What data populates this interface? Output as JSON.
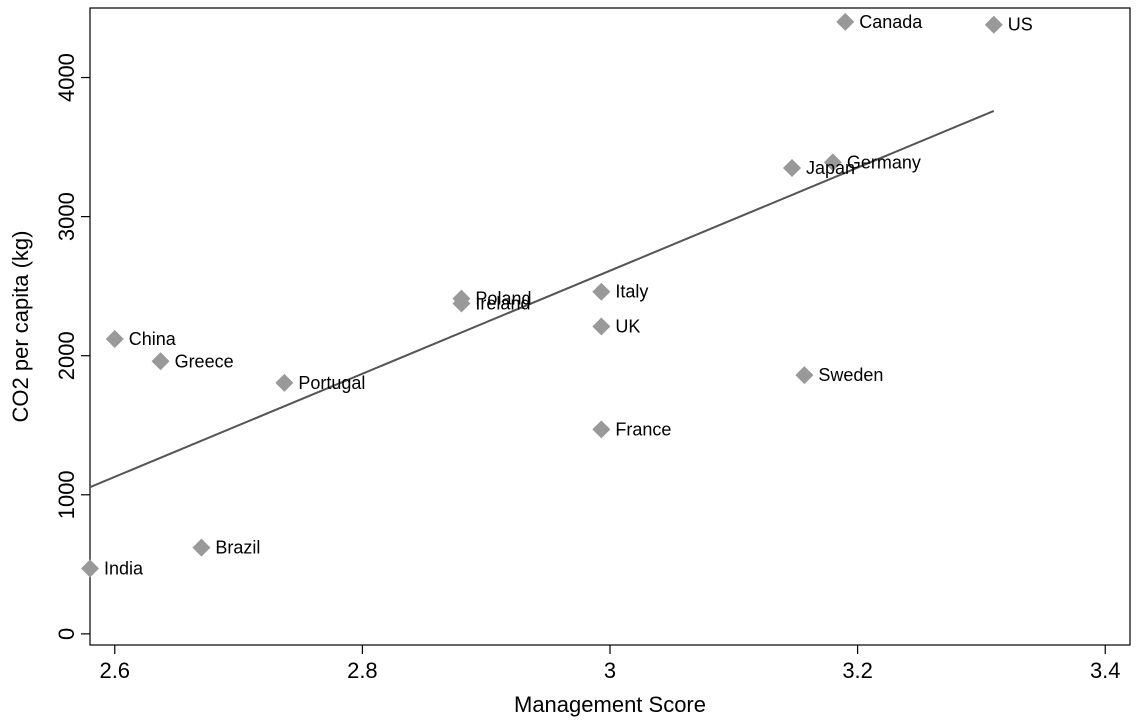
{
  "chart_data": {
    "type": "scatter",
    "title": "",
    "xlabel": "Management Score",
    "ylabel": "CO2 per capita (kg)",
    "xlim": [
      2.58,
      3.42
    ],
    "ylim": [
      -80,
      4500
    ],
    "xticks": [
      2.6,
      2.8,
      3,
      3.2,
      3.4
    ],
    "xtick_labels": [
      "2.6",
      "2.8",
      "3",
      "3.2",
      "3.4"
    ],
    "yticks": [
      0,
      1000,
      2000,
      3000,
      4000
    ],
    "ytick_labels": [
      "0",
      "1000",
      "2000",
      "3000",
      "4000"
    ],
    "grid": false,
    "marker": "diamond",
    "marker_color": "#999999",
    "line_color": "#555555",
    "points": [
      {
        "label": "India",
        "x": 2.58,
        "y": 470
      },
      {
        "label": "China",
        "x": 2.6,
        "y": 2120
      },
      {
        "label": "Greece",
        "x": 2.637,
        "y": 1960
      },
      {
        "label": "Brazil",
        "x": 2.67,
        "y": 620
      },
      {
        "label": "Portugal",
        "x": 2.737,
        "y": 1805
      },
      {
        "label": "Poland",
        "x": 2.88,
        "y": 2410
      },
      {
        "label": "Ireland",
        "x": 2.88,
        "y": 2375
      },
      {
        "label": "Italy",
        "x": 2.993,
        "y": 2460
      },
      {
        "label": "UK",
        "x": 2.993,
        "y": 2210
      },
      {
        "label": "France",
        "x": 2.993,
        "y": 1470
      },
      {
        "label": "Japan",
        "x": 3.147,
        "y": 3350
      },
      {
        "label": "Sweden",
        "x": 3.157,
        "y": 1860
      },
      {
        "label": "Germany",
        "x": 3.18,
        "y": 3390
      },
      {
        "label": "Canada",
        "x": 3.19,
        "y": 4400
      },
      {
        "label": "US",
        "x": 3.31,
        "y": 4380
      }
    ],
    "fit_line": {
      "x": [
        2.58,
        3.31
      ],
      "y": [
        1055,
        3760
      ]
    }
  }
}
